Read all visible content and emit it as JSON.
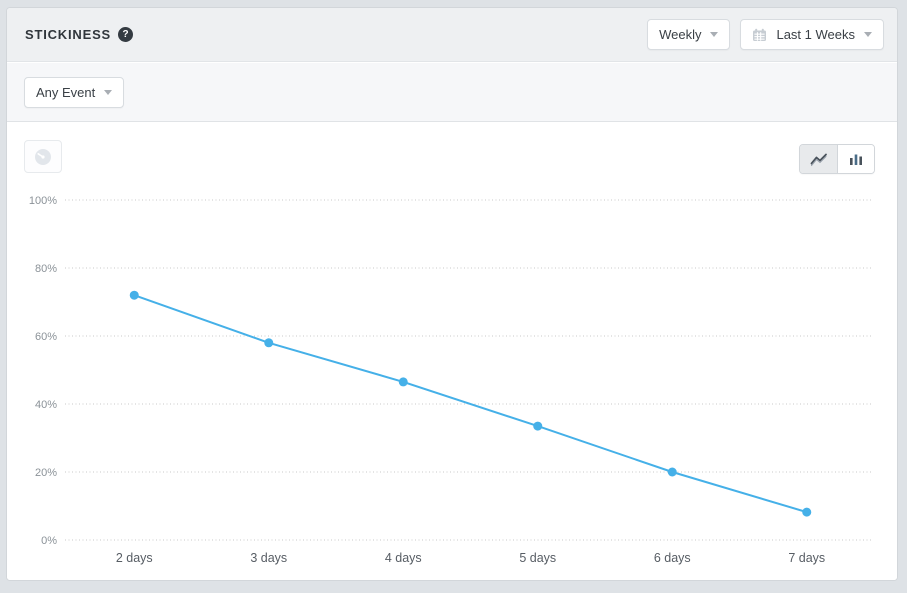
{
  "header": {
    "title": "STICKINESS",
    "help_glyph": "?",
    "granularity_dropdown": {
      "value": "Weekly"
    },
    "date_range_dropdown": {
      "value": "Last 1 Weeks",
      "icon": "calendar-icon"
    }
  },
  "filters": {
    "event_dropdown": {
      "value": "Any Event"
    }
  },
  "chart_controls": {
    "dashboard_icon": "gauge-icon",
    "toggles": [
      {
        "name": "line-chart-icon",
        "selected": true
      },
      {
        "name": "bar-chart-icon",
        "selected": false
      }
    ]
  },
  "colors": {
    "line": "#45b0e8",
    "grid": "#c9c9c9",
    "y_label": "#8b9298",
    "x_label": "#575d64"
  },
  "chart_data": {
    "type": "line",
    "title": "STICKINESS",
    "series_name": "Any Event",
    "categories": [
      "2 days",
      "3 days",
      "4 days",
      "5 days",
      "6 days",
      "7 days"
    ],
    "values": [
      72,
      58,
      46.5,
      33.5,
      20,
      8.2
    ],
    "xlabel": "",
    "ylabel": "",
    "ylim": [
      0,
      100
    ],
    "ytick_step": 20,
    "ytick_labels": [
      "0%",
      "20%",
      "40%",
      "60%",
      "80%",
      "100%"
    ],
    "grid": "dotted-horizontal",
    "legend": "none"
  }
}
